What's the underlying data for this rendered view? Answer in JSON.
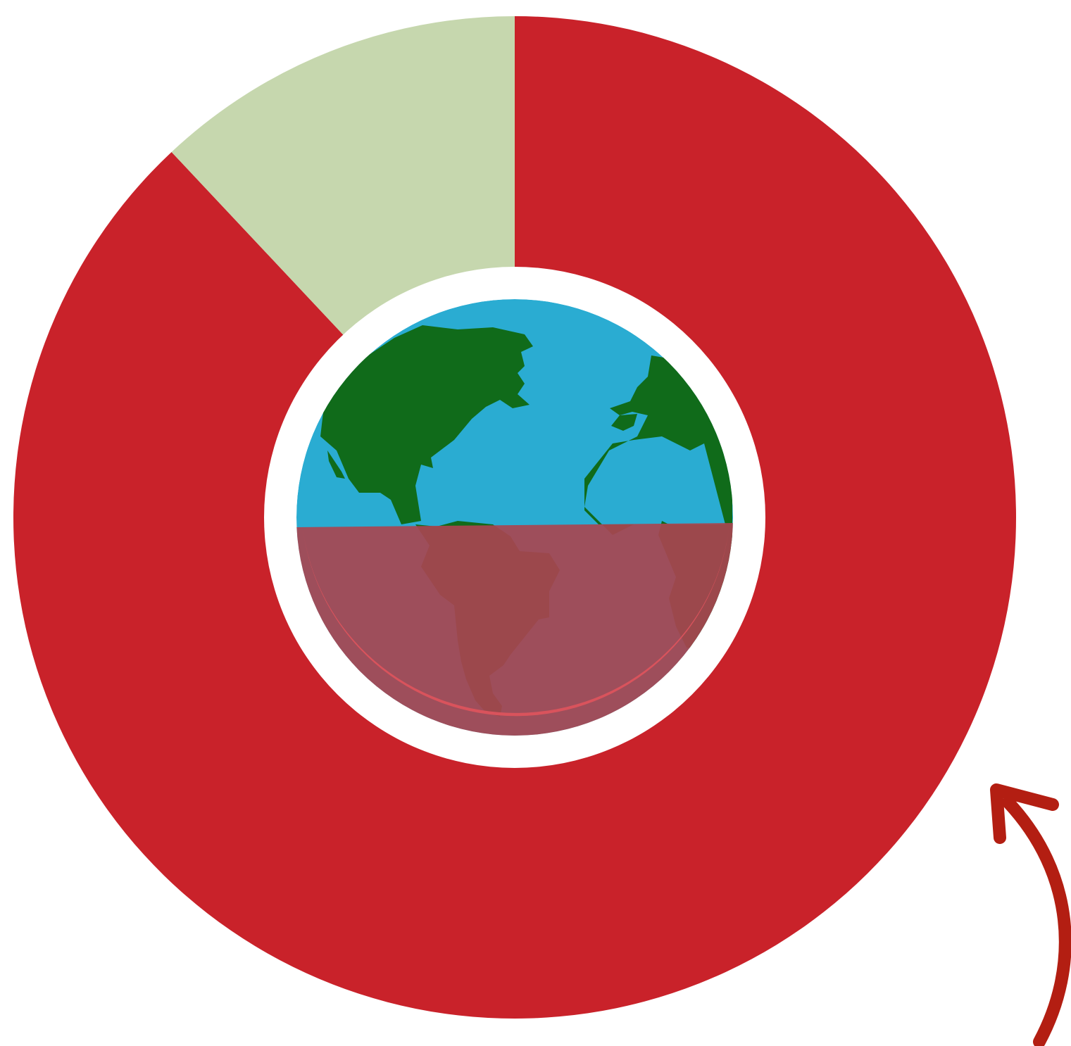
{
  "chart_data": {
    "type": "pie",
    "variant": "donut",
    "title": "",
    "categories": [
      "",
      ""
    ],
    "values": [
      88,
      12
    ],
    "colors": [
      "#c9222a",
      "#c6d7ae"
    ],
    "start": "top",
    "direction": "clockwise",
    "legend": "none"
  },
  "center_graphic": {
    "icon": "globe-icon",
    "ocean_color": "#2aacd2",
    "land_color": "#106b1a",
    "lower_half_overlay_color": "#a84550",
    "ring_gap_color": "#ffffff"
  },
  "annotation": {
    "icon": "curved-arrow-icon",
    "color": "#b31e12",
    "direction": "counter-clockwise"
  }
}
